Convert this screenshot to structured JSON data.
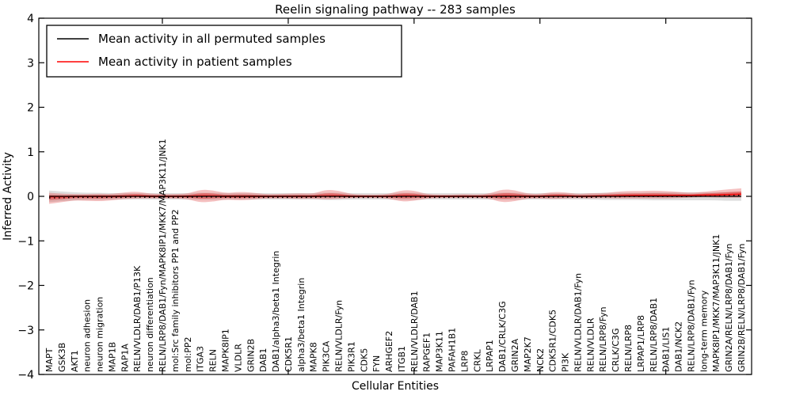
{
  "title": "Reelin signaling pathway -- 283 samples",
  "axes": {
    "xlabel": "Cellular Entities",
    "ylabel": "Inferred Activity",
    "ytick_labels": [
      "4",
      "3",
      "2",
      "1",
      "0",
      "−1",
      "−2",
      "−3",
      "−4"
    ]
  },
  "legend": {
    "entries": [
      {
        "label": "Mean activity in all permuted samples",
        "color": "#000000"
      },
      {
        "label": "Mean activity in patient samples",
        "color": "#ff0000"
      }
    ]
  },
  "chart_data": {
    "type": "line",
    "title": "Reelin signaling pathway -- 283 samples",
    "xlabel": "Cellular Entities",
    "ylabel": "Inferred Activity",
    "ylim": [
      -4,
      4
    ],
    "yticks": [
      4,
      3,
      2,
      1,
      0,
      -1,
      -2,
      -3,
      -4
    ],
    "x_major_tick_indices": [
      9,
      19,
      29,
      39,
      49
    ],
    "grid": false,
    "legend_position": "upper-left",
    "categories": [
      "MAPT",
      "GSK3B",
      "AKT1",
      "neuron adhesion",
      "neuron migration",
      "MAP1B",
      "RAP1A",
      "RELN/VLDLR/DAB1/P13K",
      "neuron differentiation",
      "RELN/LRP8/DAB1/Fyn/MAPK8IP1/MKK7/MAP3K11/JNK1",
      "mol:Src family inhibitors PP1 and PP2",
      "mol:PP2",
      "ITGA3",
      "RELN",
      "MAPK8IP1",
      "VLDLR",
      "GRIN2B",
      "DAB1",
      "DAB1/alpha3/beta1 Integrin",
      "CDK5R1",
      "alpha3/beta1 Integrin",
      "MAPK8",
      "PIK3CA",
      "RELN/VLDLR/Fyn",
      "PIK3R1",
      "CDK5",
      "FYN",
      "ARHGEF2",
      "ITGB1",
      "RELN/VLDLR/DAB1",
      "RAPGEF1",
      "MAP3K11",
      "PAFAH1B1",
      "LRP8",
      "CRKL",
      "LRPAP1",
      "DAB1/CRLK/C3G",
      "GRIN2A",
      "MAP2K7",
      "NCK2",
      "CDK5R1/CDK5",
      "PI3K",
      "RELN/VLDLR/DAB1/Fyn",
      "RELN/VLDLR",
      "RELN/LRP8/Fyn",
      "CRLK/C3G",
      "RELN/LRP8",
      "LRPAP1/LRP8",
      "RELN/LRP8/DAB1",
      "DAB1/LIS1",
      "DAB1/NCK2",
      "RELN/LRP8/DAB1/Fyn",
      "long-term memory",
      "MAPK8IP1/MKK7/MAP3K11/JNK1",
      "GRIN2A/RELN/LRP8/DAB1/Fyn",
      "GRIN2B/RELN/LRP8/DAB1/Fyn"
    ],
    "series": [
      {
        "name": "Mean activity in all permuted samples",
        "color": "#000000",
        "values": [
          0,
          0,
          0,
          0,
          0,
          0,
          0,
          0,
          0,
          0,
          0,
          0,
          0,
          0,
          0,
          0,
          0,
          0,
          0,
          0,
          0,
          0,
          0,
          0,
          0,
          0,
          0,
          0,
          0,
          0,
          0,
          0,
          0,
          0,
          0,
          0,
          0,
          0,
          0,
          0,
          0,
          0,
          0,
          0,
          0,
          0,
          0,
          0,
          0,
          0,
          0,
          0,
          0,
          0,
          0,
          0
        ]
      },
      {
        "name": "Mean activity in patient samples",
        "color": "#ee1111",
        "values": [
          -0.01,
          -0.01,
          0,
          0,
          0,
          0,
          0,
          0.01,
          0,
          0,
          0,
          0,
          0.01,
          0.01,
          0,
          0,
          0,
          0,
          0,
          0,
          0,
          0,
          0.01,
          0.01,
          0,
          0,
          0,
          0,
          0.01,
          0.01,
          0,
          0,
          0,
          0,
          0,
          0,
          0.01,
          0.01,
          0,
          0,
          0.01,
          0.01,
          0,
          0,
          0.01,
          0.01,
          0.02,
          0.02,
          0.02,
          0.02,
          0.02,
          0.02,
          0.03,
          0.03,
          0.04,
          0.05
        ]
      }
    ],
    "bands": {
      "patient_upper": [
        0.09,
        0.07,
        0.05,
        0.05,
        0.06,
        0.05,
        0.09,
        0.1,
        0.06,
        0.05,
        0.05,
        0.06,
        0.14,
        0.13,
        0.07,
        0.1,
        0.09,
        0.05,
        0.05,
        0.06,
        0.07,
        0.06,
        0.14,
        0.12,
        0.05,
        0.04,
        0.04,
        0.05,
        0.13,
        0.12,
        0.05,
        0.04,
        0.04,
        0.05,
        0.04,
        0.06,
        0.15,
        0.13,
        0.06,
        0.05,
        0.09,
        0.08,
        0.05,
        0.07,
        0.06,
        0.09,
        0.1,
        0.1,
        0.11,
        0.1,
        0.08,
        0.06,
        0.07,
        0.1,
        0.12,
        0.13
      ],
      "patient_lower": [
        0.16,
        0.12,
        0.09,
        0.1,
        0.11,
        0.09,
        0.06,
        0.06,
        0.05,
        0.05,
        0.05,
        0.06,
        0.15,
        0.13,
        0.07,
        0.09,
        0.08,
        0.05,
        0.05,
        0.05,
        0.06,
        0.05,
        0.08,
        0.07,
        0.04,
        0.04,
        0.04,
        0.05,
        0.13,
        0.11,
        0.05,
        0.04,
        0.04,
        0.04,
        0.04,
        0.05,
        0.15,
        0.12,
        0.05,
        0.05,
        0.07,
        0.06,
        0.04,
        0.05,
        0.05,
        0.06,
        0.07,
        0.07,
        0.07,
        0.07,
        0.06,
        0.05,
        0.05,
        0.06,
        0.07,
        0.08
      ],
      "patient_inner_scale": 0.45,
      "permuted_halfwidth": [
        0.13,
        0.11,
        0.09,
        0.08,
        0.08,
        0.07,
        0.07,
        0.07,
        0.07,
        0.07,
        0.07,
        0.07,
        0.08,
        0.08,
        0.07,
        0.07,
        0.07,
        0.07,
        0.07,
        0.07,
        0.07,
        0.07,
        0.08,
        0.08,
        0.07,
        0.07,
        0.07,
        0.07,
        0.08,
        0.08,
        0.07,
        0.07,
        0.07,
        0.07,
        0.07,
        0.07,
        0.08,
        0.08,
        0.07,
        0.07,
        0.07,
        0.07,
        0.07,
        0.07,
        0.08,
        0.08,
        0.08,
        0.08,
        0.09,
        0.09,
        0.09,
        0.09,
        0.09,
        0.09,
        0.1,
        0.1
      ]
    },
    "colors": {
      "patient_band": "#dd3333",
      "patient_line": "#ee1111",
      "permuted_band": "#888888",
      "permuted_line": "#000000",
      "frame": "#000000"
    }
  }
}
